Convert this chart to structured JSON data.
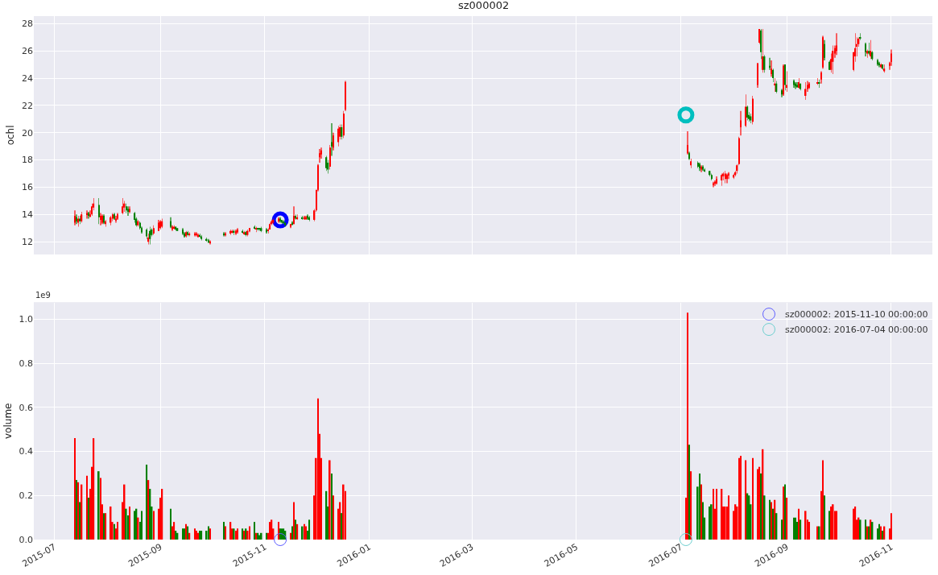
{
  "chart_data": [
    {
      "type": "candlestick",
      "title": "sz000002",
      "ylabel": "ochl",
      "x": [
        "2015-07-13",
        "2015-07-14",
        "2015-07-15",
        "2015-07-16",
        "2015-07-17",
        "2015-07-20",
        "2015-07-21",
        "2015-07-22",
        "2015-07-23",
        "2015-07-24",
        "2015-07-27",
        "2015-07-28",
        "2015-07-29",
        "2015-07-30",
        "2015-07-31",
        "2015-08-03",
        "2015-08-04",
        "2015-08-05",
        "2015-08-06",
        "2015-08-07",
        "2015-08-10",
        "2015-08-11",
        "2015-08-12",
        "2015-08-13",
        "2015-08-14",
        "2015-08-17",
        "2015-08-18",
        "2015-08-19",
        "2015-08-20",
        "2015-08-21",
        "2015-08-24",
        "2015-08-25",
        "2015-08-26",
        "2015-08-27",
        "2015-08-28",
        "2015-08-31",
        "2015-09-01",
        "2015-09-02",
        "2015-09-07",
        "2015-09-08",
        "2015-09-09",
        "2015-09-10",
        "2015-09-11",
        "2015-09-14",
        "2015-09-15",
        "2015-09-16",
        "2015-09-17",
        "2015-09-18",
        "2015-09-21",
        "2015-09-22",
        "2015-09-23",
        "2015-09-24",
        "2015-09-25",
        "2015-09-28",
        "2015-09-29",
        "2015-09-30",
        "2015-10-08",
        "2015-10-09",
        "2015-10-12",
        "2015-10-13",
        "2015-10-14",
        "2015-10-15",
        "2015-10-16",
        "2015-10-19",
        "2015-10-20",
        "2015-10-21",
        "2015-10-22",
        "2015-10-23",
        "2015-10-26",
        "2015-10-27",
        "2015-10-28",
        "2015-10-29",
        "2015-10-30",
        "2015-11-02",
        "2015-11-03",
        "2015-11-04",
        "2015-11-05",
        "2015-11-06",
        "2015-11-09",
        "2015-11-10",
        "2015-11-11",
        "2015-11-12",
        "2015-11-13",
        "2015-11-16",
        "2015-11-17",
        "2015-11-18",
        "2015-11-19",
        "2015-11-20",
        "2015-11-23",
        "2015-11-24",
        "2015-11-25",
        "2015-11-26",
        "2015-11-27",
        "2015-11-30",
        "2015-12-01",
        "2015-12-02",
        "2015-12-03",
        "2015-12-04",
        "2015-12-07",
        "2015-12-08",
        "2015-12-09",
        "2015-12-10",
        "2015-12-11",
        "2015-12-14",
        "2015-12-15",
        "2015-12-16",
        "2015-12-17",
        "2015-12-18",
        "2016-07-05",
        "2016-07-06",
        "2016-07-07",
        "2016-07-11",
        "2016-07-12",
        "2016-07-13",
        "2016-07-14",
        "2016-07-15",
        "2016-07-18",
        "2016-07-19",
        "2016-07-20",
        "2016-07-21",
        "2016-07-22",
        "2016-07-25",
        "2016-07-26",
        "2016-07-27",
        "2016-07-28",
        "2016-07-29",
        "2016-08-01",
        "2016-08-02",
        "2016-08-03",
        "2016-08-04",
        "2016-08-05",
        "2016-08-08",
        "2016-08-09",
        "2016-08-10",
        "2016-08-11",
        "2016-08-12",
        "2016-08-15",
        "2016-08-16",
        "2016-08-17",
        "2016-08-18",
        "2016-08-19",
        "2016-08-22",
        "2016-08-23",
        "2016-08-24",
        "2016-08-25",
        "2016-08-26",
        "2016-08-29",
        "2016-08-30",
        "2016-08-31",
        "2016-09-01",
        "2016-09-05",
        "2016-09-06",
        "2016-09-07",
        "2016-09-08",
        "2016-09-09",
        "2016-09-12",
        "2016-09-13",
        "2016-09-14",
        "2016-09-19",
        "2016-09-20",
        "2016-09-21",
        "2016-09-22",
        "2016-09-23",
        "2016-09-26",
        "2016-09-27",
        "2016-09-28",
        "2016-09-29",
        "2016-09-30",
        "2016-10-10",
        "2016-10-11",
        "2016-10-12",
        "2016-10-13",
        "2016-10-14",
        "2016-10-17",
        "2016-10-18",
        "2016-10-19",
        "2016-10-20",
        "2016-10-21",
        "2016-10-24",
        "2016-10-25",
        "2016-10-26",
        "2016-10-27",
        "2016-10-28",
        "2016-10-31",
        "2016-11-01"
      ],
      "ohlc": [
        [
          13.4,
          14.3,
          13.2,
          13.9
        ],
        [
          13.8,
          14.0,
          13.3,
          13.5
        ],
        [
          13.4,
          13.9,
          13.1,
          13.7
        ],
        [
          13.7,
          13.9,
          13.3,
          13.5
        ],
        [
          13.5,
          14.2,
          13.4,
          14.0
        ],
        [
          14.0,
          14.3,
          13.7,
          14.1
        ],
        [
          14.1,
          14.2,
          13.7,
          13.9
        ],
        [
          13.9,
          14.3,
          13.8,
          14.0
        ],
        [
          14.0,
          14.8,
          13.9,
          14.6
        ],
        [
          14.5,
          15.2,
          14.3,
          14.8
        ],
        [
          14.7,
          15.2,
          13.3,
          13.8
        ],
        [
          13.6,
          14.1,
          13.2,
          13.9
        ],
        [
          13.4,
          14.0,
          13.3,
          13.9
        ],
        [
          13.9,
          14.0,
          13.3,
          13.4
        ],
        [
          13.3,
          13.6,
          13.1,
          13.5
        ],
        [
          13.4,
          13.9,
          13.2,
          13.8
        ],
        [
          13.7,
          14.1,
          13.5,
          14.0
        ],
        [
          14.0,
          14.1,
          13.6,
          13.7
        ],
        [
          13.6,
          13.9,
          13.4,
          13.7
        ],
        [
          13.7,
          14.1,
          13.6,
          14.0
        ],
        [
          14.1,
          15.2,
          14.0,
          14.6
        ],
        [
          14.5,
          15.0,
          14.2,
          14.8
        ],
        [
          14.6,
          14.8,
          14.1,
          14.3
        ],
        [
          14.4,
          14.6,
          13.9,
          14.2
        ],
        [
          14.2,
          14.6,
          14.1,
          14.4
        ],
        [
          14.1,
          14.2,
          13.4,
          13.6
        ],
        [
          13.7,
          13.8,
          13.1,
          13.2
        ],
        [
          13.2,
          13.6,
          13.1,
          13.5
        ],
        [
          13.4,
          13.5,
          12.9,
          13.0
        ],
        [
          13.0,
          13.1,
          12.6,
          12.7
        ],
        [
          12.9,
          13.0,
          12.2,
          12.4
        ],
        [
          12.0,
          12.6,
          11.8,
          12.3
        ],
        [
          12.8,
          13.1,
          11.8,
          12.2
        ],
        [
          12.9,
          13.0,
          12.4,
          12.5
        ],
        [
          12.6,
          13.2,
          12.5,
          13.0
        ],
        [
          12.8,
          13.6,
          12.8,
          13.4
        ],
        [
          13.0,
          13.6,
          12.9,
          13.5
        ],
        [
          13.1,
          13.7,
          13.0,
          13.5
        ],
        [
          13.5,
          13.8,
          13.0,
          13.1
        ],
        [
          12.9,
          13.2,
          12.8,
          13.1
        ],
        [
          13.0,
          13.2,
          12.9,
          13.1
        ],
        [
          13.1,
          13.1,
          12.8,
          12.9
        ],
        [
          13.0,
          13.0,
          12.8,
          12.8
        ],
        [
          12.9,
          13.0,
          12.5,
          12.6
        ],
        [
          12.6,
          12.7,
          12.3,
          12.4
        ],
        [
          12.4,
          12.8,
          12.3,
          12.7
        ],
        [
          12.7,
          12.8,
          12.4,
          12.5
        ],
        [
          12.5,
          12.7,
          12.4,
          12.6
        ],
        [
          12.5,
          12.7,
          12.4,
          12.6
        ],
        [
          12.5,
          12.7,
          12.4,
          12.6
        ],
        [
          12.4,
          12.6,
          12.3,
          12.5
        ],
        [
          12.5,
          12.6,
          12.3,
          12.4
        ],
        [
          12.4,
          12.5,
          12.1,
          12.2
        ],
        [
          12.2,
          12.3,
          12.0,
          12.1
        ],
        [
          12.1,
          12.2,
          11.9,
          12.0
        ],
        [
          11.9,
          12.1,
          11.8,
          12.0
        ],
        [
          12.6,
          12.7,
          12.4,
          12.5
        ],
        [
          12.5,
          12.7,
          12.4,
          12.6
        ],
        [
          12.6,
          12.9,
          12.5,
          12.8
        ],
        [
          12.7,
          12.9,
          12.6,
          12.8
        ],
        [
          12.8,
          12.9,
          12.5,
          12.7
        ],
        [
          12.6,
          12.9,
          12.5,
          12.8
        ],
        [
          12.7,
          13.0,
          12.6,
          12.9
        ],
        [
          12.8,
          12.9,
          12.6,
          12.7
        ],
        [
          12.6,
          12.8,
          12.5,
          12.7
        ],
        [
          12.7,
          12.8,
          12.4,
          12.5
        ],
        [
          12.5,
          12.9,
          12.4,
          12.8
        ],
        [
          12.8,
          13.0,
          12.7,
          13.0
        ],
        [
          13.1,
          13.2,
          12.9,
          13.0
        ],
        [
          12.9,
          13.1,
          12.7,
          13.0
        ],
        [
          13.0,
          13.0,
          12.8,
          12.9
        ],
        [
          13.0,
          13.0,
          12.8,
          12.9
        ],
        [
          13.0,
          13.1,
          12.7,
          12.8
        ],
        [
          12.9,
          13.0,
          12.6,
          12.7
        ],
        [
          12.8,
          13.0,
          12.6,
          12.9
        ],
        [
          12.9,
          13.4,
          12.9,
          13.3
        ],
        [
          13.3,
          13.6,
          13.2,
          13.5
        ],
        [
          13.4,
          13.7,
          13.3,
          13.6
        ],
        [
          13.5,
          13.8,
          13.4,
          13.7
        ],
        [
          13.7,
          13.8,
          13.4,
          13.5
        ],
        [
          13.6,
          13.6,
          13.3,
          13.4
        ],
        [
          13.5,
          13.6,
          13.3,
          13.4
        ],
        [
          13.4,
          13.4,
          13.1,
          13.2
        ],
        [
          13.1,
          13.3,
          13.0,
          13.3
        ],
        [
          13.4,
          13.5,
          13.2,
          13.3
        ],
        [
          13.3,
          14.6,
          13.3,
          13.9
        ],
        [
          13.9,
          14.0,
          13.6,
          13.7
        ],
        [
          13.7,
          14.0,
          13.6,
          13.8
        ],
        [
          13.8,
          13.9,
          13.6,
          13.7
        ],
        [
          13.7,
          13.9,
          13.6,
          13.8
        ],
        [
          13.7,
          13.9,
          13.6,
          13.8
        ],
        [
          13.9,
          14.0,
          13.6,
          13.7
        ],
        [
          13.8,
          13.9,
          13.5,
          13.6
        ],
        [
          13.6,
          14.4,
          13.5,
          14.3
        ],
        [
          14.3,
          15.8,
          14.2,
          15.8
        ],
        [
          15.8,
          17.7,
          15.7,
          17.6
        ],
        [
          18.2,
          18.8,
          17.8,
          18.5
        ],
        [
          18.4,
          18.9,
          18.1,
          18.7
        ],
        [
          18.2,
          18.3,
          17.2,
          17.4
        ],
        [
          17.8,
          18.0,
          17.0,
          17.3
        ],
        [
          17.5,
          19.1,
          17.3,
          18.9
        ],
        [
          19.3,
          20.7,
          18.3,
          19.0
        ],
        [
          18.9,
          20.0,
          18.7,
          19.8
        ],
        [
          19.3,
          20.5,
          19.0,
          20.3
        ],
        [
          19.7,
          20.6,
          19.5,
          20.4
        ],
        [
          20.4,
          20.6,
          19.5,
          19.7
        ],
        [
          19.8,
          21.6,
          19.6,
          21.4
        ],
        [
          21.7,
          23.8,
          21.6,
          23.7
        ],
        [
          18.5,
          20.1,
          18.4,
          19.1
        ],
        [
          18.5,
          18.6,
          18.0,
          18.1
        ],
        [
          17.6,
          18.1,
          17.4,
          17.9
        ],
        [
          17.8,
          17.9,
          17.4,
          17.5
        ],
        [
          17.7,
          17.8,
          17.2,
          17.4
        ],
        [
          17.3,
          17.6,
          17.1,
          17.5
        ],
        [
          17.5,
          17.6,
          17.2,
          17.3
        ],
        [
          17.3,
          17.4,
          17.1,
          17.2
        ],
        [
          17.2,
          17.2,
          16.8,
          16.9
        ],
        [
          16.9,
          17.0,
          16.5,
          16.6
        ],
        [
          16.2,
          16.4,
          16.0,
          16.3
        ],
        [
          16.3,
          16.5,
          16.1,
          16.4
        ],
        [
          16.3,
          16.8,
          16.2,
          16.6
        ],
        [
          16.5,
          17.0,
          16.1,
          16.9
        ],
        [
          16.8,
          17.1,
          16.5,
          17.0
        ],
        [
          16.6,
          17.2,
          16.3,
          17.0
        ],
        [
          16.6,
          17.0,
          16.3,
          16.9
        ],
        [
          16.9,
          17.1,
          16.6,
          17.0
        ],
        [
          16.7,
          17.0,
          16.6,
          16.9
        ],
        [
          16.9,
          17.2,
          16.8,
          17.1
        ],
        [
          17.2,
          17.7,
          17.0,
          17.6
        ],
        [
          17.7,
          19.7,
          17.6,
          19.6
        ],
        [
          20.4,
          21.6,
          19.8,
          20.9
        ],
        [
          20.5,
          22.8,
          20.4,
          21.9
        ],
        [
          21.9,
          22.0,
          20.9,
          21.1
        ],
        [
          21.3,
          21.5,
          20.8,
          21.0
        ],
        [
          21.2,
          21.4,
          20.7,
          20.9
        ],
        [
          20.8,
          22.7,
          20.6,
          22.5
        ],
        [
          23.5,
          25.1,
          23.3,
          25.1
        ],
        [
          26.6,
          27.6,
          26.5,
          27.6
        ],
        [
          27.5,
          27.6,
          25.4,
          25.9
        ],
        [
          24.6,
          27.6,
          24.4,
          25.6
        ],
        [
          25.6,
          25.7,
          24.4,
          24.6
        ],
        [
          24.9,
          25.5,
          24.6,
          24.8
        ],
        [
          24.3,
          25.3,
          24.1,
          24.7
        ],
        [
          24.6,
          24.7,
          23.7,
          24.0
        ],
        [
          23.5,
          24.0,
          23.0,
          23.6
        ],
        [
          23.6,
          23.8,
          22.9,
          23.0
        ],
        [
          23.1,
          23.2,
          22.6,
          22.8
        ],
        [
          22.8,
          25.0,
          22.7,
          24.9
        ],
        [
          25.0,
          25.0,
          23.1,
          23.5
        ],
        [
          23.3,
          24.5,
          23.0,
          23.5
        ],
        [
          23.8,
          23.9,
          23.3,
          23.5
        ],
        [
          23.6,
          23.7,
          23.2,
          23.4
        ],
        [
          23.5,
          23.7,
          23.3,
          23.4
        ],
        [
          23.3,
          24.0,
          23.2,
          23.7
        ],
        [
          23.6,
          23.6,
          23.1,
          23.2
        ],
        [
          22.7,
          23.7,
          22.4,
          23.2
        ],
        [
          23.2,
          23.8,
          23.0,
          23.5
        ],
        [
          23.3,
          23.7,
          23.2,
          23.6
        ],
        [
          23.6,
          24.0,
          23.5,
          23.7
        ],
        [
          23.7,
          23.9,
          23.3,
          23.6
        ],
        [
          23.9,
          24.5,
          23.6,
          24.4
        ],
        [
          24.8,
          27.1,
          24.7,
          27.0
        ],
        [
          26.5,
          26.8,
          25.3,
          25.5
        ],
        [
          25.2,
          25.3,
          24.6,
          24.6
        ],
        [
          24.6,
          25.8,
          24.4,
          25.4
        ],
        [
          25.2,
          26.4,
          24.3,
          26.0
        ],
        [
          25.8,
          26.4,
          25.5,
          26.2
        ],
        [
          26.0,
          27.3,
          25.7,
          26.4
        ],
        [
          24.6,
          25.9,
          24.5,
          25.9
        ],
        [
          25.6,
          27.3,
          25.2,
          26.2
        ],
        [
          26.3,
          27.0,
          25.6,
          26.5
        ],
        [
          26.5,
          27.0,
          26.3,
          26.9
        ],
        [
          27.0,
          27.3,
          26.8,
          26.9
        ],
        [
          26.5,
          26.6,
          25.6,
          25.9
        ],
        [
          25.8,
          26.1,
          25.5,
          26.0
        ],
        [
          26.0,
          26.6,
          25.7,
          25.8
        ],
        [
          25.6,
          26.8,
          25.4,
          26.0
        ],
        [
          25.9,
          26.0,
          25.3,
          25.4
        ],
        [
          25.3,
          25.4,
          24.9,
          25.0
        ],
        [
          25.1,
          25.2,
          24.8,
          25.0
        ],
        [
          24.8,
          25.1,
          24.7,
          25.0
        ],
        [
          25.0,
          25.0,
          24.6,
          24.7
        ],
        [
          24.5,
          25.0,
          24.4,
          24.7
        ],
        [
          24.9,
          25.2,
          24.6,
          25.1
        ],
        [
          25.2,
          26.1,
          24.9,
          25.8
        ]
      ],
      "colors": [
        "#ff0000",
        "#008000",
        "#ff0000",
        "#008000",
        "#ff0000",
        "#ff0000",
        "#008000",
        "#ff0000",
        "#ff0000",
        "#ff0000",
        "#008000",
        "#ff0000",
        "#ff0000",
        "#008000",
        "#ff0000",
        "#ff0000",
        "#ff0000",
        "#008000",
        "#ff0000",
        "#ff0000",
        "#ff0000",
        "#ff0000",
        "#008000",
        "#008000",
        "#ff0000",
        "#008000",
        "#008000",
        "#ff0000",
        "#008000",
        "#008000",
        "#008000",
        "#ff0000",
        "#008000",
        "#008000",
        "#ff0000",
        "#ff0000",
        "#ff0000",
        "#ff0000",
        "#008000",
        "#ff0000",
        "#ff0000",
        "#008000",
        "#008000",
        "#008000",
        "#008000",
        "#ff0000",
        "#008000",
        "#ff0000",
        "#ff0000",
        "#ff0000",
        "#ff0000",
        "#008000",
        "#008000",
        "#008000",
        "#008000",
        "#ff0000",
        "#008000",
        "#ff0000",
        "#ff0000",
        "#ff0000",
        "#008000",
        "#ff0000",
        "#ff0000",
        "#008000",
        "#ff0000",
        "#008000",
        "#ff0000",
        "#ff0000",
        "#008000",
        "#ff0000",
        "#008000",
        "#008000",
        "#008000",
        "#008000",
        "#ff0000",
        "#ff0000",
        "#ff0000",
        "#ff0000",
        "#ff0000",
        "#008000",
        "#008000",
        "#008000",
        "#008000",
        "#ff0000",
        "#008000",
        "#ff0000",
        "#008000",
        "#ff0000",
        "#008000",
        "#ff0000",
        "#ff0000",
        "#008000",
        "#008000",
        "#ff0000",
        "#ff0000",
        "#ff0000",
        "#ff0000",
        "#ff0000",
        "#008000",
        "#008000",
        "#ff0000",
        "#008000",
        "#ff0000",
        "#ff0000",
        "#ff0000",
        "#008000",
        "#ff0000",
        "#ff0000",
        "#ff0000",
        "#008000",
        "#ff0000",
        "#008000",
        "#008000",
        "#ff0000",
        "#008000",
        "#008000",
        "#008000",
        "#008000",
        "#ff0000",
        "#ff0000",
        "#ff0000",
        "#ff0000",
        "#ff0000",
        "#ff0000",
        "#ff0000",
        "#ff0000",
        "#ff0000",
        "#ff0000",
        "#ff0000",
        "#ff0000",
        "#ff0000",
        "#ff0000",
        "#008000",
        "#008000",
        "#008000",
        "#ff0000",
        "#ff0000",
        "#ff0000",
        "#008000",
        "#ff0000",
        "#008000",
        "#008000",
        "#ff0000",
        "#008000",
        "#ff0000",
        "#008000",
        "#008000",
        "#ff0000",
        "#008000",
        "#ff0000",
        "#008000",
        "#008000",
        "#008000",
        "#ff0000",
        "#008000",
        "#ff0000",
        "#ff0000",
        "#ff0000",
        "#ff0000",
        "#008000",
        "#ff0000",
        "#ff0000",
        "#008000",
        "#008000",
        "#ff0000",
        "#ff0000",
        "#ff0000",
        "#ff0000",
        "#ff0000",
        "#ff0000",
        "#ff0000",
        "#ff0000",
        "#008000",
        "#008000",
        "#ff0000",
        "#008000",
        "#ff0000",
        "#008000",
        "#008000",
        "#008000",
        "#ff0000",
        "#008000",
        "#ff0000",
        "#ff0000",
        "#ff0000"
      ],
      "series": [
        {
          "type": "scatter",
          "x": [
            "2015-11-10"
          ],
          "values": [
            13.6
          ],
          "color": "#0000ff",
          "marker": "circle"
        },
        {
          "type": "scatter",
          "x": [
            "2016-07-04"
          ],
          "values": [
            21.3
          ],
          "color": "#00bfbf",
          "marker": "circle"
        }
      ],
      "xlim": [
        "2015-06-19",
        "2016-11-25"
      ],
      "xticks": [
        "2015-07",
        "2015-09",
        "2015-11",
        "2016-01",
        "2016-03",
        "2016-05",
        "2016-07",
        "2016-09",
        "2016-11"
      ],
      "ylim": [
        11.08,
        28.55
      ],
      "yticks": [
        12,
        14,
        16,
        18,
        20,
        22,
        24,
        26,
        28
      ],
      "grid": true,
      "tick_labels": "y",
      "legend": false
    },
    {
      "type": "bar",
      "ylabel": "volume",
      "annotations": [
        "1e9"
      ],
      "x": [
        "2015-07-13",
        "2015-07-14",
        "2015-07-15",
        "2015-07-16",
        "2015-07-17",
        "2015-07-20",
        "2015-07-21",
        "2015-07-22",
        "2015-07-23",
        "2015-07-24",
        "2015-07-27",
        "2015-07-28",
        "2015-07-29",
        "2015-07-30",
        "2015-07-31",
        "2015-08-03",
        "2015-08-04",
        "2015-08-05",
        "2015-08-06",
        "2015-08-07",
        "2015-08-10",
        "2015-08-11",
        "2015-08-12",
        "2015-08-13",
        "2015-08-14",
        "2015-08-17",
        "2015-08-18",
        "2015-08-19",
        "2015-08-20",
        "2015-08-21",
        "2015-08-24",
        "2015-08-25",
        "2015-08-26",
        "2015-08-27",
        "2015-08-28",
        "2015-08-31",
        "2015-09-01",
        "2015-09-02",
        "2015-09-07",
        "2015-09-08",
        "2015-09-09",
        "2015-09-10",
        "2015-09-11",
        "2015-09-14",
        "2015-09-15",
        "2015-09-16",
        "2015-09-17",
        "2015-09-18",
        "2015-09-21",
        "2015-09-22",
        "2015-09-23",
        "2015-09-24",
        "2015-09-25",
        "2015-09-28",
        "2015-09-29",
        "2015-09-30",
        "2015-10-08",
        "2015-10-09",
        "2015-10-12",
        "2015-10-13",
        "2015-10-14",
        "2015-10-15",
        "2015-10-16",
        "2015-10-19",
        "2015-10-20",
        "2015-10-21",
        "2015-10-22",
        "2015-10-23",
        "2015-10-26",
        "2015-10-27",
        "2015-10-28",
        "2015-10-29",
        "2015-10-30",
        "2015-11-02",
        "2015-11-03",
        "2015-11-04",
        "2015-11-05",
        "2015-11-06",
        "2015-11-09",
        "2015-11-10",
        "2015-11-11",
        "2015-11-12",
        "2015-11-13",
        "2015-11-16",
        "2015-11-17",
        "2015-11-18",
        "2015-11-19",
        "2015-11-20",
        "2015-11-23",
        "2015-11-24",
        "2015-11-25",
        "2015-11-26",
        "2015-11-27",
        "2015-11-30",
        "2015-12-01",
        "2015-12-02",
        "2015-12-03",
        "2015-12-04",
        "2015-12-07",
        "2015-12-08",
        "2015-12-09",
        "2015-12-10",
        "2015-12-11",
        "2015-12-14",
        "2015-12-15",
        "2015-12-16",
        "2015-12-17",
        "2015-12-18",
        "2016-07-04",
        "2016-07-05",
        "2016-07-06",
        "2016-07-07",
        "2016-07-11",
        "2016-07-12",
        "2016-07-13",
        "2016-07-14",
        "2016-07-15",
        "2016-07-18",
        "2016-07-19",
        "2016-07-20",
        "2016-07-21",
        "2016-07-22",
        "2016-07-25",
        "2016-07-26",
        "2016-07-27",
        "2016-07-28",
        "2016-07-29",
        "2016-08-01",
        "2016-08-02",
        "2016-08-03",
        "2016-08-04",
        "2016-08-05",
        "2016-08-08",
        "2016-08-09",
        "2016-08-10",
        "2016-08-11",
        "2016-08-12",
        "2016-08-15",
        "2016-08-16",
        "2016-08-17",
        "2016-08-18",
        "2016-08-19",
        "2016-08-22",
        "2016-08-23",
        "2016-08-24",
        "2016-08-25",
        "2016-08-26",
        "2016-08-29",
        "2016-08-30",
        "2016-08-31",
        "2016-09-01",
        "2016-09-05",
        "2016-09-06",
        "2016-09-07",
        "2016-09-08",
        "2016-09-09",
        "2016-09-12",
        "2016-09-13",
        "2016-09-14",
        "2016-09-19",
        "2016-09-20",
        "2016-09-21",
        "2016-09-22",
        "2016-09-23",
        "2016-09-26",
        "2016-09-27",
        "2016-09-28",
        "2016-09-29",
        "2016-09-30",
        "2016-10-10",
        "2016-10-11",
        "2016-10-12",
        "2016-10-13",
        "2016-10-14",
        "2016-10-17",
        "2016-10-18",
        "2016-10-19",
        "2016-10-20",
        "2016-10-21",
        "2016-10-24",
        "2016-10-25",
        "2016-10-26",
        "2016-10-27",
        "2016-10-28",
        "2016-10-31",
        "2016-11-01"
      ],
      "values": [
        0.46,
        0.27,
        0.26,
        0.17,
        0.25,
        0.29,
        0.19,
        0.23,
        0.33,
        0.46,
        0.31,
        0.28,
        0.16,
        0.12,
        0.12,
        0.15,
        0.08,
        0.07,
        0.05,
        0.08,
        0.17,
        0.25,
        0.14,
        0.11,
        0.15,
        0.13,
        0.14,
        0.1,
        0.08,
        0.13,
        0.34,
        0.27,
        0.23,
        0.15,
        0.13,
        0.14,
        0.19,
        0.23,
        0.14,
        0.06,
        0.08,
        0.04,
        0.03,
        0.05,
        0.05,
        0.07,
        0.06,
        0.03,
        0.05,
        0.04,
        0.03,
        0.04,
        0.04,
        0.04,
        0.06,
        0.05,
        0.08,
        0.06,
        0.08,
        0.05,
        0.05,
        0.04,
        0.05,
        0.05,
        0.04,
        0.05,
        0.04,
        0.06,
        0.08,
        0.03,
        0.03,
        0.02,
        0.03,
        0.03,
        0.03,
        0.08,
        0.09,
        0.05,
        0.08,
        0.05,
        0.05,
        0.05,
        0.04,
        0.03,
        0.06,
        0.17,
        0.09,
        0.07,
        0.06,
        0.07,
        0.06,
        0.04,
        0.09,
        0.2,
        0.37,
        0.64,
        0.48,
        0.37,
        0.22,
        0.15,
        0.36,
        0.3,
        0.2,
        0.14,
        0.17,
        0.12,
        0.25,
        0.22,
        0.19,
        1.03,
        0.43,
        0.31,
        0.24,
        0.3,
        0.25,
        0.17,
        0.1,
        0.15,
        0.16,
        0.23,
        0.14,
        0.23,
        0.23,
        0.15,
        0.15,
        0.15,
        0.2,
        0.13,
        0.16,
        0.15,
        0.37,
        0.38,
        0.36,
        0.21,
        0.2,
        0.16,
        0.37,
        0.32,
        0.33,
        0.3,
        0.41,
        0.2,
        0.18,
        0.17,
        0.14,
        0.18,
        0.12,
        0.09,
        0.24,
        0.25,
        0.19,
        0.1,
        0.1,
        0.08,
        0.14,
        0.09,
        0.13,
        0.09,
        0.08,
        0.06,
        0.06,
        0.22,
        0.36,
        0.2,
        0.13,
        0.15,
        0.16,
        0.13,
        0.13,
        0.14,
        0.15,
        0.09,
        0.1,
        0.09,
        0.09,
        0.06,
        0.06,
        0.09,
        0.08,
        0.05,
        0.07,
        0.06,
        0.04,
        0.06,
        0.05,
        0.12
      ],
      "colors": [
        "#ff0000",
        "#008000",
        "#ff0000",
        "#008000",
        "#ff0000",
        "#ff0000",
        "#008000",
        "#ff0000",
        "#ff0000",
        "#ff0000",
        "#008000",
        "#ff0000",
        "#ff0000",
        "#008000",
        "#ff0000",
        "#ff0000",
        "#ff0000",
        "#008000",
        "#ff0000",
        "#ff0000",
        "#ff0000",
        "#ff0000",
        "#008000",
        "#008000",
        "#ff0000",
        "#008000",
        "#008000",
        "#ff0000",
        "#008000",
        "#008000",
        "#008000",
        "#ff0000",
        "#008000",
        "#008000",
        "#ff0000",
        "#ff0000",
        "#ff0000",
        "#ff0000",
        "#008000",
        "#ff0000",
        "#ff0000",
        "#008000",
        "#008000",
        "#008000",
        "#008000",
        "#ff0000",
        "#008000",
        "#ff0000",
        "#ff0000",
        "#ff0000",
        "#ff0000",
        "#008000",
        "#008000",
        "#008000",
        "#008000",
        "#ff0000",
        "#008000",
        "#ff0000",
        "#ff0000",
        "#ff0000",
        "#008000",
        "#ff0000",
        "#ff0000",
        "#008000",
        "#ff0000",
        "#008000",
        "#ff0000",
        "#ff0000",
        "#008000",
        "#ff0000",
        "#008000",
        "#008000",
        "#008000",
        "#008000",
        "#ff0000",
        "#ff0000",
        "#ff0000",
        "#ff0000",
        "#ff0000",
        "#008000",
        "#008000",
        "#008000",
        "#008000",
        "#ff0000",
        "#008000",
        "#ff0000",
        "#008000",
        "#ff0000",
        "#008000",
        "#ff0000",
        "#ff0000",
        "#008000",
        "#008000",
        "#ff0000",
        "#ff0000",
        "#ff0000",
        "#ff0000",
        "#ff0000",
        "#008000",
        "#008000",
        "#ff0000",
        "#008000",
        "#ff0000",
        "#ff0000",
        "#ff0000",
        "#008000",
        "#ff0000",
        "#ff0000",
        "#ff0000",
        "#ff0000",
        "#008000",
        "#ff0000",
        "#008000",
        "#008000",
        "#ff0000",
        "#008000",
        "#008000",
        "#008000",
        "#008000",
        "#ff0000",
        "#ff0000",
        "#ff0000",
        "#ff0000",
        "#ff0000",
        "#ff0000",
        "#ff0000",
        "#ff0000",
        "#ff0000",
        "#ff0000",
        "#ff0000",
        "#ff0000",
        "#ff0000",
        "#ff0000",
        "#008000",
        "#008000",
        "#008000",
        "#ff0000",
        "#ff0000",
        "#ff0000",
        "#008000",
        "#ff0000",
        "#008000",
        "#008000",
        "#ff0000",
        "#008000",
        "#ff0000",
        "#008000",
        "#008000",
        "#ff0000",
        "#008000",
        "#ff0000",
        "#008000",
        "#008000",
        "#008000",
        "#ff0000",
        "#008000",
        "#ff0000",
        "#ff0000",
        "#ff0000",
        "#ff0000",
        "#008000",
        "#ff0000",
        "#ff0000",
        "#008000",
        "#008000",
        "#ff0000",
        "#ff0000",
        "#ff0000",
        "#ff0000",
        "#ff0000",
        "#ff0000",
        "#ff0000",
        "#ff0000",
        "#008000",
        "#008000",
        "#ff0000",
        "#008000",
        "#ff0000",
        "#008000",
        "#008000",
        "#008000",
        "#ff0000",
        "#008000",
        "#ff0000",
        "#ff0000",
        "#ff0000"
      ],
      "series": [
        {
          "type": "scatter",
          "name": "sz000002: 2015-11-10 00:00:00",
          "x": [
            "2015-11-10"
          ],
          "values": [
            0
          ],
          "color": "#6060ff",
          "marker": "circle"
        },
        {
          "type": "scatter",
          "name": "sz000002: 2016-07-04 00:00:00",
          "x": [
            "2016-07-04"
          ],
          "values": [
            0
          ],
          "color": "#70d0d0",
          "marker": "circle"
        }
      ],
      "xlim": [
        "2015-06-19",
        "2016-11-25"
      ],
      "xticks": [
        "2015-07",
        "2015-09",
        "2015-11",
        "2016-01",
        "2016-03",
        "2016-05",
        "2016-07",
        "2016-09",
        "2016-11"
      ],
      "ylim": [
        0,
        1.076
      ],
      "yticks": [
        {
          "value": 0,
          "label": "0.0"
        },
        {
          "value": 0.2,
          "label": "0.2"
        },
        {
          "value": 0.4,
          "label": "0.4"
        },
        {
          "value": 0.6,
          "label": "0.6"
        },
        {
          "value": 0.8,
          "label": "0.8"
        },
        {
          "value": 1.0,
          "label": "1.0"
        }
      ],
      "grid": true,
      "legend": "top right"
    }
  ]
}
